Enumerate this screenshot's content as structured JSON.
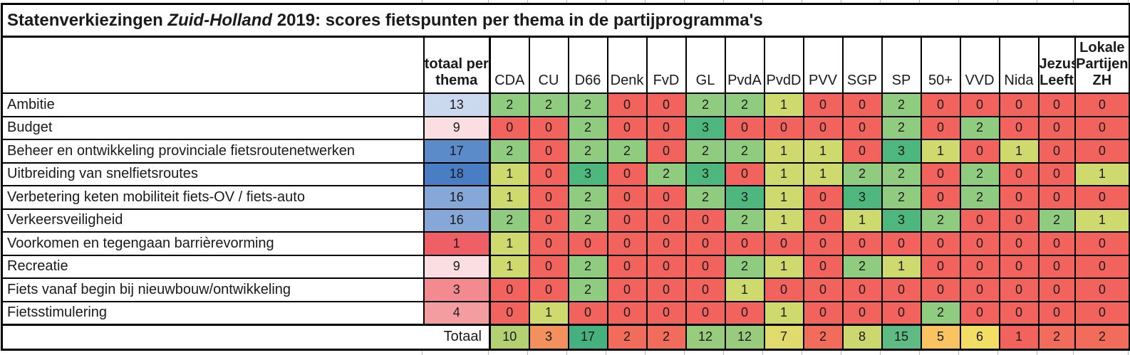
{
  "title": {
    "part1": "Statenverkiezingen ",
    "part2": "Zuid-Holland",
    "part3": " 2019: scores fietspunten per thema in de partijprogramma's"
  },
  "header": {
    "total_col": {
      "lines": [
        "totaal per",
        "thema"
      ]
    },
    "parties": [
      {
        "id": "CDA",
        "small": false,
        "lines": [
          "CDA"
        ]
      },
      {
        "id": "CU",
        "small": false,
        "lines": [
          "CU"
        ]
      },
      {
        "id": "D66",
        "small": false,
        "lines": [
          "D66"
        ]
      },
      {
        "id": "Denk",
        "small": false,
        "lines": [
          "Denk"
        ]
      },
      {
        "id": "FvD",
        "small": false,
        "lines": [
          "FvD"
        ]
      },
      {
        "id": "GL",
        "small": false,
        "lines": [
          "GL"
        ]
      },
      {
        "id": "PvdA",
        "small": false,
        "lines": [
          "PvdA"
        ]
      },
      {
        "id": "PvdD",
        "small": false,
        "lines": [
          "PvdD"
        ]
      },
      {
        "id": "PVV",
        "small": false,
        "lines": [
          "PVV"
        ]
      },
      {
        "id": "SGP",
        "small": false,
        "lines": [
          "SGP"
        ]
      },
      {
        "id": "SP",
        "small": false,
        "lines": [
          "SP"
        ]
      },
      {
        "id": "50+",
        "small": false,
        "lines": [
          "50+"
        ]
      },
      {
        "id": "VVD",
        "small": false,
        "lines": [
          "VVD"
        ]
      },
      {
        "id": "Nida",
        "small": false,
        "lines": [
          "Nida"
        ]
      },
      {
        "id": "Jezus Leeft",
        "small": true,
        "lines": [
          "Jezus",
          "Leeft"
        ]
      },
      {
        "id": "Lokale Partijen ZH",
        "small": true,
        "lines": [
          "Lokale",
          "Partijen",
          "ZH"
        ]
      }
    ]
  },
  "score_colors": {
    "0": "#F2635E",
    "1": "#CEDA6E",
    "2": "#90CC7F",
    "3": "#4DB77E"
  },
  "rows": [
    {
      "label": "Ambitie",
      "total": 13,
      "total_color": "#CBD9EE",
      "scores": [
        2,
        2,
        2,
        0,
        0,
        2,
        2,
        1,
        0,
        0,
        2,
        0,
        0,
        0,
        0,
        0
      ]
    },
    {
      "label": "Budget",
      "total": 9,
      "total_color": "#FBDEE1",
      "scores": [
        0,
        0,
        2,
        0,
        0,
        3,
        0,
        0,
        0,
        0,
        2,
        0,
        2,
        0,
        0,
        0
      ]
    },
    {
      "label": "Beheer en ontwikkeling provinciale fietsroutenetwerken",
      "total": 17,
      "total_color": "#5C8BC9",
      "scores": [
        2,
        0,
        2,
        2,
        0,
        2,
        2,
        1,
        1,
        0,
        3,
        1,
        0,
        1,
        0,
        0
      ]
    },
    {
      "label": "Uitbreiding van snelfietsroutes",
      "total": 18,
      "total_color": "#4A7EC4",
      "scores": [
        1,
        0,
        3,
        0,
        2,
        3,
        0,
        1,
        1,
        2,
        2,
        0,
        2,
        0,
        0,
        1
      ]
    },
    {
      "label": "Verbetering keten mobiliteit fiets-OV / fiets-auto",
      "total": 16,
      "total_color": "#85A8D9",
      "scores": [
        1,
        0,
        2,
        0,
        0,
        2,
        3,
        1,
        0,
        3,
        2,
        0,
        2,
        0,
        0,
        0
      ]
    },
    {
      "label": "Verkeersveiligheid",
      "total": 16,
      "total_color": "#85A8D9",
      "scores": [
        2,
        0,
        2,
        0,
        0,
        0,
        2,
        1,
        0,
        1,
        3,
        2,
        0,
        0,
        2,
        1
      ]
    },
    {
      "label": "Voorkomen en tegengaan barrièrevorming",
      "total": 1,
      "total_color": "#EE5F66",
      "scores": [
        1,
        0,
        0,
        0,
        0,
        0,
        0,
        0,
        0,
        0,
        0,
        0,
        0,
        0,
        0,
        0
      ]
    },
    {
      "label": "Recreatie",
      "total": 9,
      "total_color": "#FBDEE1",
      "scores": [
        1,
        0,
        2,
        0,
        0,
        0,
        2,
        1,
        0,
        2,
        1,
        0,
        0,
        0,
        0,
        0
      ]
    },
    {
      "label": "Fiets vanaf begin bij nieuwbouw/ontwikkeling",
      "total": 3,
      "total_color": "#F28A90",
      "scores": [
        0,
        0,
        2,
        0,
        0,
        0,
        1,
        0,
        0,
        0,
        0,
        0,
        0,
        0,
        0,
        0
      ]
    },
    {
      "label": "Fietsstimulering",
      "total": 4,
      "total_color": "#F49DA1",
      "scores": [
        0,
        1,
        0,
        0,
        0,
        0,
        0,
        1,
        0,
        0,
        0,
        2,
        0,
        0,
        0,
        0
      ]
    }
  ],
  "totals": {
    "label": "Totaal",
    "values": [
      10,
      3,
      17,
      2,
      2,
      12,
      12,
      7,
      2,
      8,
      15,
      5,
      6,
      1,
      2,
      2
    ],
    "colors": [
      "#B3D173",
      "#F2905E",
      "#46B07E",
      "#F16C5B",
      "#F16C5B",
      "#98CC7C",
      "#98CC7C",
      "#E1DB6D",
      "#F16C5B",
      "#CCD86F",
      "#5FBB83",
      "#F8C360",
      "#F2DE65",
      "#F2635E",
      "#F16C5B",
      "#F16C5B"
    ]
  },
  "chart_data": {
    "type": "heatmap",
    "title": "Statenverkiezingen Zuid-Holland 2019: scores fietspunten per thema in de partijprogramma's",
    "columns": [
      "CDA",
      "CU",
      "D66",
      "Denk",
      "FvD",
      "GL",
      "PvdA",
      "PvdD",
      "PVV",
      "SGP",
      "SP",
      "50+",
      "VVD",
      "Nida",
      "Jezus Leeft",
      "Lokale Partijen ZH"
    ],
    "rows": [
      "Ambitie",
      "Budget",
      "Beheer en ontwikkeling provinciale fietsroutenetwerken",
      "Uitbreiding van snelfietsroutes",
      "Verbetering keten mobiliteit fiets-OV / fiets-auto",
      "Verkeersveiligheid",
      "Voorkomen en tegengaan barrièrevorming",
      "Recreatie",
      "Fiets vanaf begin bij nieuwbouw/ontwikkeling",
      "Fietsstimulering"
    ],
    "matrix": [
      [
        2,
        2,
        2,
        0,
        0,
        2,
        2,
        1,
        0,
        0,
        2,
        0,
        0,
        0,
        0,
        0
      ],
      [
        0,
        0,
        2,
        0,
        0,
        3,
        0,
        0,
        0,
        0,
        2,
        0,
        2,
        0,
        0,
        0
      ],
      [
        2,
        0,
        2,
        2,
        0,
        2,
        2,
        1,
        1,
        0,
        3,
        1,
        0,
        1,
        0,
        0
      ],
      [
        1,
        0,
        3,
        0,
        2,
        3,
        0,
        1,
        1,
        2,
        2,
        0,
        2,
        0,
        0,
        1
      ],
      [
        1,
        0,
        2,
        0,
        0,
        2,
        3,
        1,
        0,
        3,
        2,
        0,
        2,
        0,
        0,
        0
      ],
      [
        2,
        0,
        2,
        0,
        0,
        0,
        2,
        1,
        0,
        1,
        3,
        2,
        0,
        0,
        2,
        1
      ],
      [
        1,
        0,
        0,
        0,
        0,
        0,
        0,
        0,
        0,
        0,
        0,
        0,
        0,
        0,
        0,
        0
      ],
      [
        1,
        0,
        2,
        0,
        0,
        0,
        2,
        1,
        0,
        2,
        1,
        0,
        0,
        0,
        0,
        0
      ],
      [
        0,
        0,
        2,
        0,
        0,
        0,
        1,
        0,
        0,
        0,
        0,
        0,
        0,
        0,
        0,
        0
      ],
      [
        0,
        1,
        0,
        0,
        0,
        0,
        0,
        1,
        0,
        0,
        0,
        2,
        0,
        0,
        0,
        0
      ]
    ],
    "row_totals_label": "totaal per thema",
    "row_totals": [
      13,
      9,
      17,
      18,
      16,
      16,
      1,
      9,
      3,
      4
    ],
    "column_totals_label": "Totaal",
    "column_totals": [
      10,
      3,
      17,
      2,
      2,
      12,
      12,
      7,
      2,
      8,
      15,
      5,
      6,
      1,
      2,
      2
    ],
    "value_scale": {
      "0": "#F2635E",
      "1": "#CEDA6E",
      "2": "#90CC7F",
      "3": "#4DB77E"
    },
    "row_total_scale": "red(low) to blue(high)",
    "column_total_scale": "red(low) via yellow to green(high)",
    "grid": true,
    "legend": false
  }
}
